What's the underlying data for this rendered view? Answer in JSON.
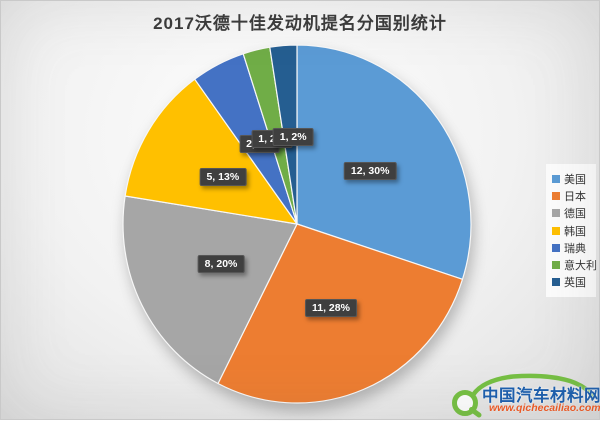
{
  "title": "2017沃德十佳发动机提名分国别统计",
  "chart_data": {
    "type": "pie",
    "title": "2017沃德十佳发动机提名分国别统计",
    "legend_position": "right",
    "total": 40,
    "start_angle_deg": 0,
    "direction": "clockwise",
    "slices": [
      {
        "key": "usa",
        "label": "美国",
        "value": 12,
        "pct": "30%",
        "data_label": "12, 30%",
        "color": "#5B9BD5"
      },
      {
        "key": "japan",
        "label": "日本",
        "value": 11,
        "pct": "28%",
        "data_label": "11, 28%",
        "color": "#ED7D31"
      },
      {
        "key": "germany",
        "label": "德国",
        "value": 8,
        "pct": "20%",
        "data_label": "8, 20%",
        "color": "#A6A6A6"
      },
      {
        "key": "korea",
        "label": "韩国",
        "value": 5,
        "pct": "13%",
        "data_label": "5, 13%",
        "color": "#FFC000"
      },
      {
        "key": "sweden",
        "label": "瑞典",
        "value": 2,
        "pct": "5%",
        "data_label": "2, 5%",
        "color": "#4472C4"
      },
      {
        "key": "italy",
        "label": "意大利",
        "value": 1,
        "pct": "2%",
        "data_label": "1, 2%",
        "color": "#70AD47"
      },
      {
        "key": "uk",
        "label": "英国",
        "value": 1,
        "pct": "2%",
        "data_label": "1, 2%",
        "color": "#255E91"
      }
    ]
  },
  "watermark": {
    "name": "中国汽车材料网",
    "url_text": "www.qichecailiao.com",
    "brand_green": "#76C043",
    "brand_blue": "#1C5FAE",
    "brand_orange": "#F15A24"
  }
}
